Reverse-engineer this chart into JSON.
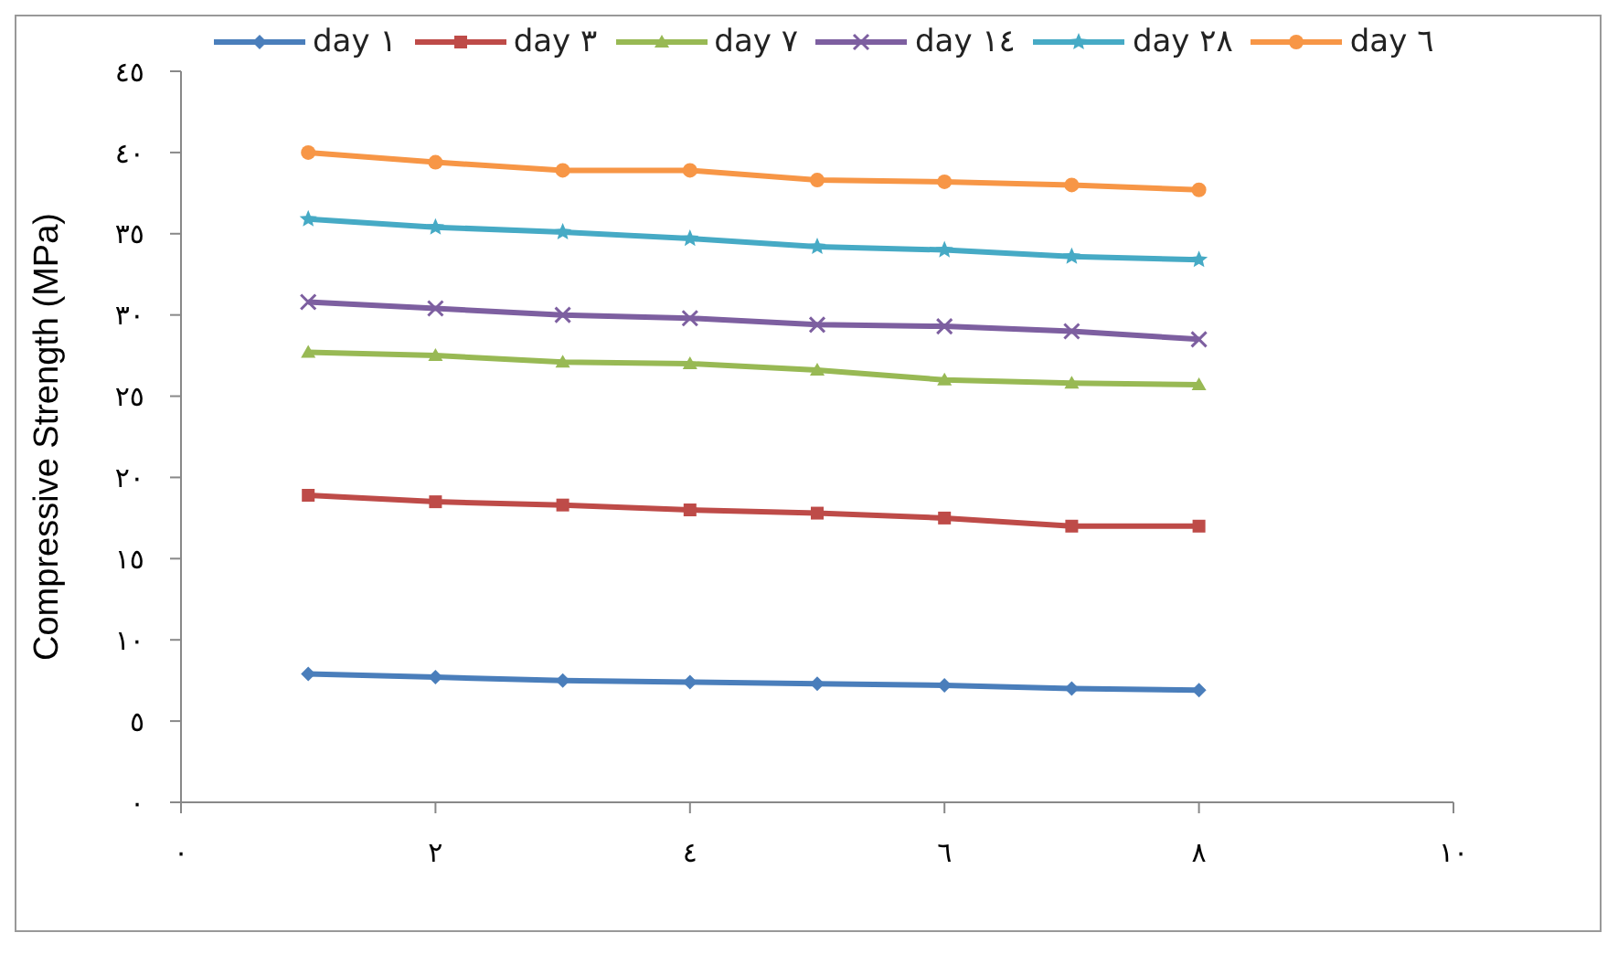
{
  "chart_data": {
    "type": "line",
    "ylabel": "Compressive Strength (MPa)",
    "x": [
      1,
      2,
      3,
      4,
      5,
      6,
      7,
      8
    ],
    "xlim": [
      0,
      10
    ],
    "xticks": [
      {
        "value": 0,
        "label": "٠"
      },
      {
        "value": 2,
        "label": "٢"
      },
      {
        "value": 4,
        "label": "٤"
      },
      {
        "value": 6,
        "label": "٦"
      },
      {
        "value": 8,
        "label": "٨"
      },
      {
        "value": 10,
        "label": "١٠"
      }
    ],
    "ylim": [
      0,
      45
    ],
    "yticks": [
      {
        "value": 0,
        "label": "٠"
      },
      {
        "value": 5,
        "label": "٥"
      },
      {
        "value": 10,
        "label": "١٠"
      },
      {
        "value": 15,
        "label": "١٥"
      },
      {
        "value": 20,
        "label": "٢٠"
      },
      {
        "value": 25,
        "label": "٢٥"
      },
      {
        "value": 30,
        "label": "٣٠"
      },
      {
        "value": 35,
        "label": "٣٥"
      },
      {
        "value": 40,
        "label": "٤٠"
      },
      {
        "value": 45,
        "label": "٤٥"
      }
    ],
    "grid": false,
    "legend": "top",
    "line_style": "solid",
    "series": [
      {
        "name": "day ١",
        "color": "#4a7ebb",
        "marker": "diamond",
        "values": [
          7.9,
          7.7,
          7.5,
          7.4,
          7.3,
          7.2,
          7.0,
          6.9
        ]
      },
      {
        "name": "day ٣",
        "color": "#be4b48",
        "marker": "square",
        "values": [
          18.9,
          18.5,
          18.3,
          18.0,
          17.8,
          17.5,
          17.0,
          17.0
        ]
      },
      {
        "name": "day ٧",
        "color": "#98b954",
        "marker": "triangle",
        "values": [
          27.7,
          27.5,
          27.1,
          27.0,
          26.6,
          26.0,
          25.8,
          25.7
        ]
      },
      {
        "name": "day ١٤",
        "color": "#7d5fa0",
        "marker": "cross",
        "values": [
          30.8,
          30.4,
          30.0,
          29.8,
          29.4,
          29.3,
          29.0,
          28.5
        ]
      },
      {
        "name": "day ٢٨",
        "color": "#46aac5",
        "marker": "star",
        "values": [
          35.9,
          35.4,
          35.1,
          34.7,
          34.2,
          34.0,
          33.6,
          33.4
        ]
      },
      {
        "name": "day ٦",
        "color": "#f79646",
        "marker": "circle",
        "values": [
          40.0,
          39.4,
          38.9,
          38.9,
          38.3,
          38.2,
          38.0,
          37.7
        ]
      }
    ]
  }
}
